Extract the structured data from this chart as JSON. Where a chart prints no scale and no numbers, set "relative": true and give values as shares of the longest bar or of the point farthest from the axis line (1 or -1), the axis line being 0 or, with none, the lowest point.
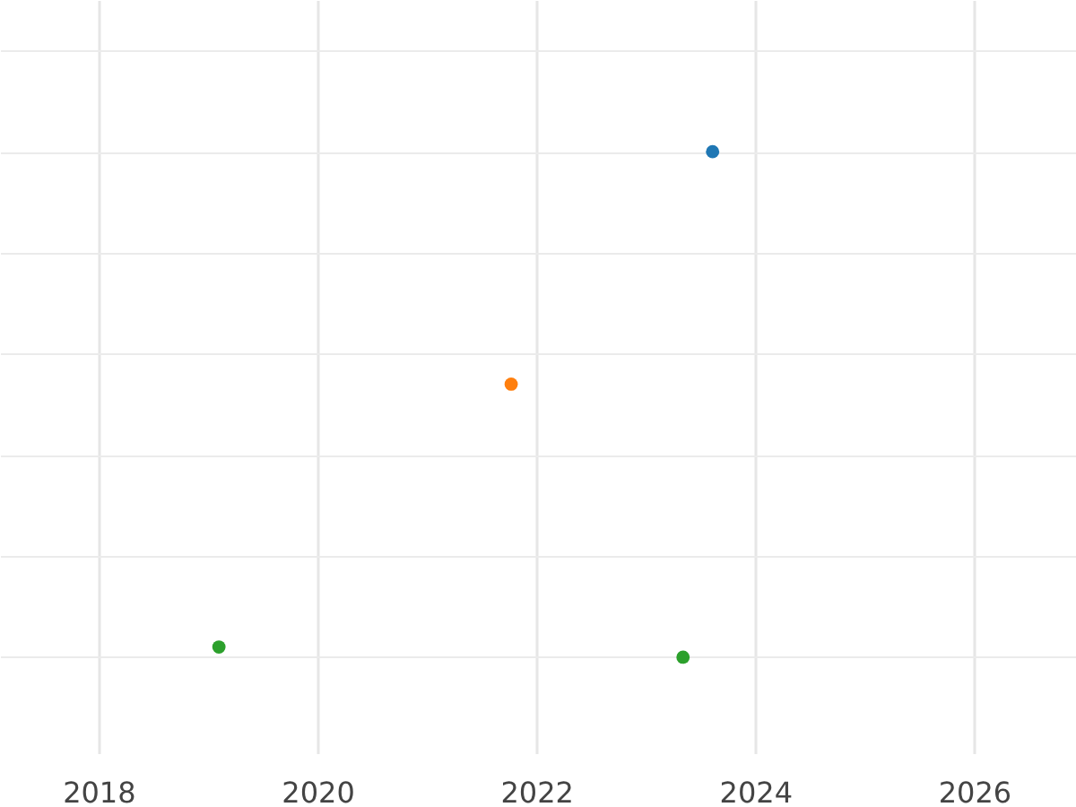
{
  "chart_data": {
    "type": "scatter",
    "relative": true,
    "xlim": [
      2017.1,
      2026.93
    ],
    "xticks": [
      2018,
      2020,
      2022,
      2024,
      2026
    ],
    "grid": true,
    "legend": false,
    "marker": "circle",
    "series": [
      {
        "color": "#1f77b4",
        "x": [
          2023.61
        ],
        "values": [
          1
        ]
      },
      {
        "color": "#ff7f0e",
        "x": [
          2021.77
        ],
        "values": [
          0.54
        ]
      },
      {
        "color": "#2ca02c",
        "x": [
          2019.1,
          2023.34
        ],
        "values": [
          0.02,
          0
        ]
      }
    ]
  }
}
